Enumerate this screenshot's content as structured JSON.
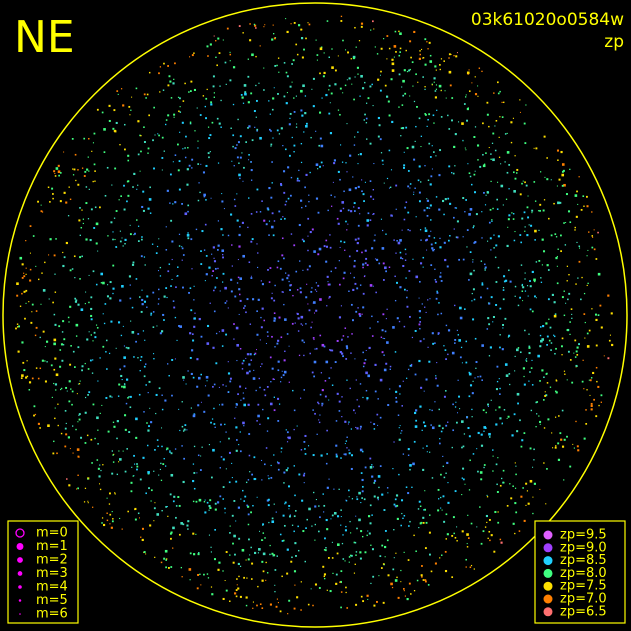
{
  "header": {
    "direction": "NE",
    "frame_id": "03k61020o0584w",
    "quantity": "zp"
  },
  "magnitude_legend": {
    "entries": [
      "m=0",
      "m=1",
      "m=2",
      "m=3",
      "m=4",
      "m=5",
      "m=6"
    ],
    "color": "#ff00ff"
  },
  "zp_legend": {
    "entries": [
      {
        "label": "zp=9.5",
        "color": "#e060ff"
      },
      {
        "label": "zp=9.0",
        "color": "#a040ff"
      },
      {
        "label": "zp=8.5",
        "color": "#20d0ff"
      },
      {
        "label": "zp=8.0",
        "color": "#40ff80"
      },
      {
        "label": "zp=7.5",
        "color": "#ffe000"
      },
      {
        "label": "zp=7.0",
        "color": "#ff8000"
      },
      {
        "label": "zp=6.5",
        "color": "#ff7070"
      }
    ]
  }
}
